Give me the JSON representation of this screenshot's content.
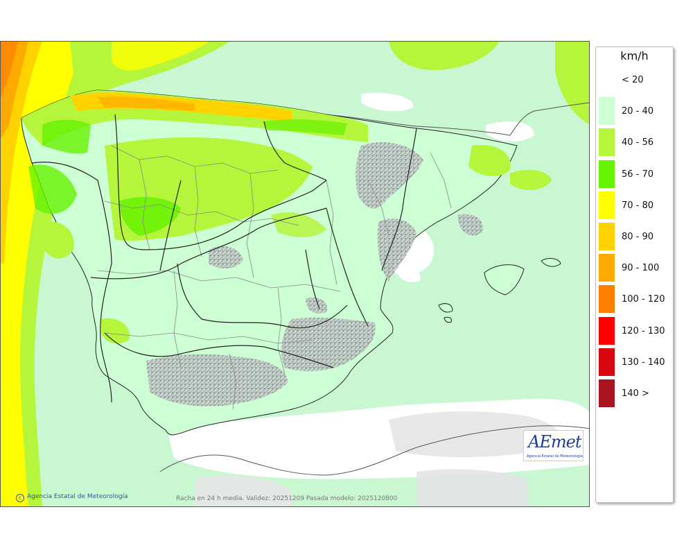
{
  "map": {
    "credit": "Agencia Estatal de Meteorología",
    "validity_text": "Racha en 24 h media. Validez: 20251209 Pasada modelo: 2025120800",
    "logo_text": "AEmet",
    "logo_subtext": "Agencia Estatal de Meteorología"
  },
  "legend": {
    "title": "km/h",
    "items": [
      {
        "label": "< 20",
        "color": "#ffffff"
      },
      {
        "label": "20 - 40",
        "color": "#ccffd4"
      },
      {
        "label": "40 - 56",
        "color": "#b5f53c"
      },
      {
        "label": "56 - 70",
        "color": "#66f200"
      },
      {
        "label": "70 - 80",
        "color": "#ffff00"
      },
      {
        "label": "80 - 90",
        "color": "#ffd200"
      },
      {
        "label": "90 - 100",
        "color": "#ffaa00"
      },
      {
        "label": "100 - 120",
        "color": "#ff7f00"
      },
      {
        "label": "120 - 130",
        "color": "#ff0000"
      },
      {
        "label": "130 - 140",
        "color": "#d7060f"
      },
      {
        "label": "140 >",
        "color": "#aa1420"
      }
    ]
  }
}
